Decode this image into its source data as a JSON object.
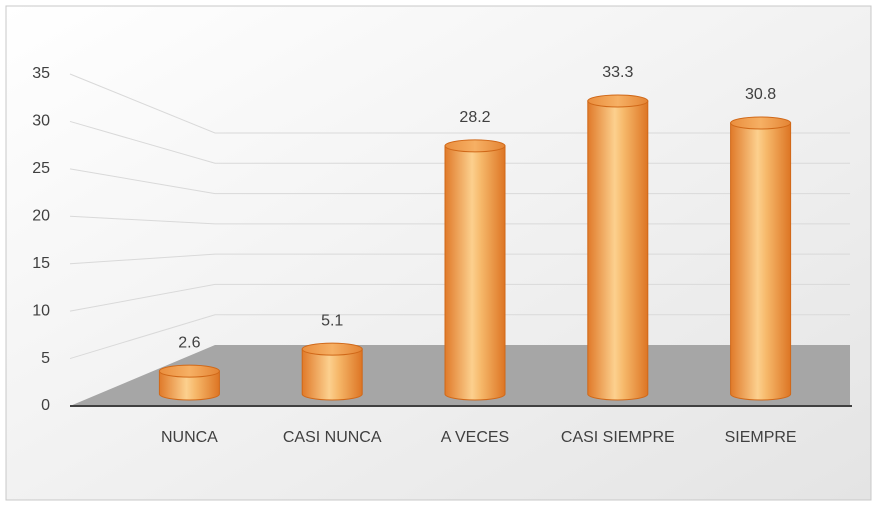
{
  "chart_data": {
    "type": "bar",
    "categories": [
      "NUNCA",
      "CASI NUNCA",
      "A VECES",
      "CASI SIEMPRE",
      "SIEMPRE"
    ],
    "values": [
      2.6,
      5.1,
      28.2,
      33.3,
      30.8
    ],
    "color": "#f0a050",
    "ylim": [
      0,
      35
    ],
    "yticks": [
      0,
      5,
      10,
      15,
      20,
      25,
      30,
      35
    ],
    "grid": true
  }
}
